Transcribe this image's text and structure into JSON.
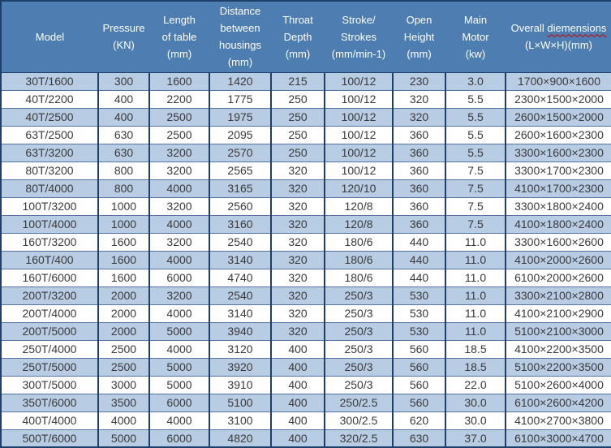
{
  "colors": {
    "header_bg": "#4d7db1",
    "header_text": "#ffffff",
    "row_alt_bg": "#b8cce4",
    "row_bg": "#ffffff",
    "border_dark": "#1e3f69",
    "border_light": "#55749e",
    "cell_text": "#3a3a3a",
    "squiggle": "#cc0000"
  },
  "table": {
    "columns": [
      {
        "id": "model",
        "lines": [
          "Model"
        ]
      },
      {
        "id": "pressure",
        "lines": [
          "Pressure",
          "(KN)"
        ]
      },
      {
        "id": "length-of-table",
        "lines": [
          "Length",
          "of table",
          "(mm)"
        ]
      },
      {
        "id": "distance-between-housings",
        "lines": [
          "Distance",
          "between",
          "housings",
          "(mm)"
        ]
      },
      {
        "id": "throat-depth",
        "lines": [
          "Throat",
          "Depth",
          "(mm)"
        ]
      },
      {
        "id": "stroke-strokes",
        "lines": [
          "Stroke/",
          "Strokes",
          "(mm/min-1)"
        ]
      },
      {
        "id": "open-height",
        "lines": [
          "Open",
          "Height",
          "(mm)"
        ]
      },
      {
        "id": "main-motor",
        "lines": [
          "Main",
          "Motor",
          "(kw)"
        ]
      },
      {
        "id": "overall-dimensions",
        "lines": [
          "Overall diemensions",
          "(L×W×H)(mm)"
        ],
        "squiggle_word": "diemensions"
      }
    ],
    "rows": [
      [
        "30T/1600",
        "300",
        "1600",
        "1420",
        "215",
        "100/12",
        "230",
        "3.0",
        "1700×900×1600"
      ],
      [
        "40T/2200",
        "400",
        "2200",
        "1775",
        "250",
        "100/12",
        "320",
        "5.5",
        "2300×1500×2000"
      ],
      [
        "40T/2500",
        "400",
        "2500",
        "1975",
        "250",
        "100/12",
        "320",
        "5.5",
        "2600×1500×2000"
      ],
      [
        "63T/2500",
        "630",
        "2500",
        "2095",
        "250",
        "100/12",
        "360",
        "5.5",
        "2600×1600×2300"
      ],
      [
        "63T/3200",
        "630",
        "3200",
        "2570",
        "250",
        "100/12",
        "360",
        "5.5",
        "3300×1600×2300"
      ],
      [
        "80T/3200",
        "800",
        "3200",
        "2565",
        "320",
        "100/12",
        "360",
        "7.5",
        "3300×1700×2300"
      ],
      [
        "80T/4000",
        "800",
        "4000",
        "3165",
        "320",
        "120/10",
        "360",
        "7.5",
        "4100×1700×2300"
      ],
      [
        "100T/3200",
        "1000",
        "3200",
        "2560",
        "320",
        "120/8",
        "360",
        "7.5",
        "3300×1800×2400"
      ],
      [
        "100T/4000",
        "1000",
        "4000",
        "3160",
        "320",
        "120/8",
        "360",
        "7.5",
        "4100×1800×2400"
      ],
      [
        "160T/3200",
        "1600",
        "3200",
        "2540",
        "320",
        "180/6",
        "440",
        "11.0",
        "3300×1600×2600"
      ],
      [
        "160T/400",
        "1600",
        "4000",
        "3140",
        "320",
        "180/6",
        "440",
        "11.0",
        "4100×2000×2600"
      ],
      [
        "160T/6000",
        "1600",
        "6000",
        "4740",
        "320",
        "180/6",
        "440",
        "11.0",
        "6100×2000×2600"
      ],
      [
        "200T/3200",
        "2000",
        "3200",
        "2540",
        "320",
        "250/3",
        "530",
        "11.0",
        "3300×2100×2800"
      ],
      [
        "200T/4000",
        "2000",
        "4000",
        "3140",
        "320",
        "250/3",
        "530",
        "11.0",
        "4100×2100×2900"
      ],
      [
        "200T/5000",
        "2000",
        "5000",
        "3940",
        "320",
        "250/3",
        "530",
        "11.0",
        "5100×2100×3000"
      ],
      [
        "250T/4000",
        "2500",
        "4000",
        "3120",
        "400",
        "250/3",
        "560",
        "18.5",
        "4100×2200×3500"
      ],
      [
        "250T/5000",
        "2500",
        "5000",
        "3920",
        "400",
        "250/3",
        "560",
        "18.5",
        "5100×2200×3500"
      ],
      [
        "300T/5000",
        "3000",
        "5000",
        "3910",
        "400",
        "250/3",
        "560",
        "22.0",
        "5100×2600×4000"
      ],
      [
        "350T/6000",
        "3500",
        "6000",
        "5100",
        "400",
        "250/2.5",
        "560",
        "30.0",
        "6100×2600×4200"
      ],
      [
        "400T/4000",
        "4000",
        "4000",
        "3100",
        "400",
        "300/2.5",
        "620",
        "30.0",
        "4100×2700×3800"
      ],
      [
        "500T/6000",
        "5000",
        "6000",
        "4820",
        "400",
        "320/2.5",
        "630",
        "37.0",
        "6100×3000×4700"
      ]
    ]
  },
  "chart_data": {
    "type": "table",
    "title": "Press machine specifications table",
    "columns": [
      "Model",
      "Pressure (KN)",
      "Length of table (mm)",
      "Distance between housings (mm)",
      "Throat Depth (mm)",
      "Stroke/Strokes (mm/min-1)",
      "Open Height (mm)",
      "Main Motor (kw)",
      "Overall diemensions (L×W×H)(mm)"
    ],
    "rows": [
      [
        "30T/1600",
        300,
        1600,
        1420,
        215,
        "100/12",
        230,
        3.0,
        "1700×900×1600"
      ],
      [
        "40T/2200",
        400,
        2200,
        1775,
        250,
        "100/12",
        320,
        5.5,
        "2300×1500×2000"
      ],
      [
        "40T/2500",
        400,
        2500,
        1975,
        250,
        "100/12",
        320,
        5.5,
        "2600×1500×2000"
      ],
      [
        "63T/2500",
        630,
        2500,
        2095,
        250,
        "100/12",
        360,
        5.5,
        "2600×1600×2300"
      ],
      [
        "63T/3200",
        630,
        3200,
        2570,
        250,
        "100/12",
        360,
        5.5,
        "3300×1600×2300"
      ],
      [
        "80T/3200",
        800,
        3200,
        2565,
        320,
        "100/12",
        360,
        7.5,
        "3300×1700×2300"
      ],
      [
        "80T/4000",
        800,
        4000,
        3165,
        320,
        "120/10",
        360,
        7.5,
        "4100×1700×2300"
      ],
      [
        "100T/3200",
        1000,
        3200,
        2560,
        320,
        "120/8",
        360,
        7.5,
        "3300×1800×2400"
      ],
      [
        "100T/4000",
        1000,
        4000,
        3160,
        320,
        "120/8",
        360,
        7.5,
        "4100×1800×2400"
      ],
      [
        "160T/3200",
        1600,
        3200,
        2540,
        320,
        "180/6",
        440,
        11.0,
        "3300×1600×2600"
      ],
      [
        "160T/400",
        1600,
        4000,
        3140,
        320,
        "180/6",
        440,
        11.0,
        "4100×2000×2600"
      ],
      [
        "160T/6000",
        1600,
        6000,
        4740,
        320,
        "180/6",
        440,
        11.0,
        "6100×2000×2600"
      ],
      [
        "200T/3200",
        2000,
        3200,
        2540,
        320,
        "250/3",
        530,
        11.0,
        "3300×2100×2800"
      ],
      [
        "200T/4000",
        2000,
        4000,
        3140,
        320,
        "250/3",
        530,
        11.0,
        "4100×2100×2900"
      ],
      [
        "200T/5000",
        2000,
        5000,
        3940,
        320,
        "250/3",
        530,
        11.0,
        "5100×2100×3000"
      ],
      [
        "250T/4000",
        2500,
        4000,
        3120,
        400,
        "250/3",
        560,
        18.5,
        "4100×2200×3500"
      ],
      [
        "250T/5000",
        2500,
        5000,
        3920,
        400,
        "250/3",
        560,
        18.5,
        "5100×2200×3500"
      ],
      [
        "300T/5000",
        3000,
        5000,
        3910,
        400,
        "250/3",
        560,
        22.0,
        "5100×2600×4000"
      ],
      [
        "350T/6000",
        3500,
        6000,
        5100,
        400,
        "250/2.5",
        560,
        30.0,
        "6100×2600×4200"
      ],
      [
        "400T/4000",
        4000,
        4000,
        3100,
        400,
        "300/2.5",
        620,
        30.0,
        "4100×2700×3800"
      ],
      [
        "500T/6000",
        5000,
        6000,
        4820,
        400,
        "320/2.5",
        630,
        37.0,
        "6100×3000×4700"
      ]
    ]
  }
}
